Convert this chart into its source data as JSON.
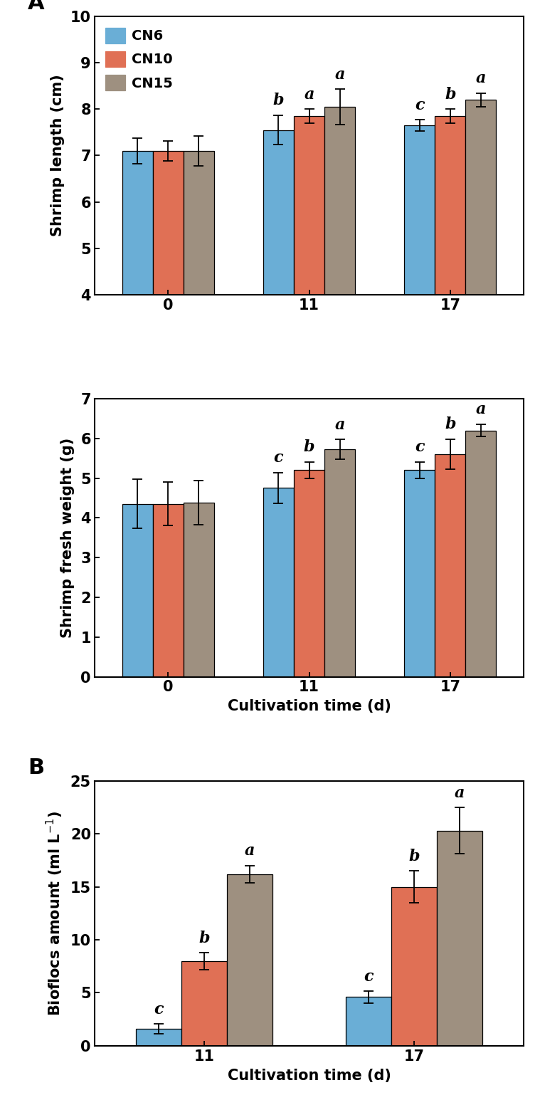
{
  "panel_A_label": "A",
  "panel_B_label": "B",
  "colors": {
    "CN6": "#6aaed6",
    "CN10": "#e07055",
    "CN15": "#9e9080"
  },
  "legend_labels": [
    "CN6",
    "CN10",
    "CN15"
  ],
  "subplot1": {
    "ylabel": "Shrimp length (cm)",
    "ylim": [
      4,
      10
    ],
    "yticks": [
      4,
      5,
      6,
      7,
      8,
      9,
      10
    ],
    "groups": [
      "0",
      "11",
      "17"
    ],
    "values": {
      "CN6": [
        7.1,
        7.55,
        7.65
      ],
      "CN10": [
        7.1,
        7.85,
        7.85
      ],
      "CN15": [
        7.1,
        8.05,
        8.2
      ]
    },
    "errors": {
      "CN6": [
        0.28,
        0.32,
        0.12
      ],
      "CN10": [
        0.22,
        0.15,
        0.15
      ],
      "CN15": [
        0.32,
        0.38,
        0.15
      ]
    },
    "sig_labels": {
      "0": [
        "",
        "",
        ""
      ],
      "11": [
        "b",
        "a",
        "a"
      ],
      "17": [
        "c",
        "b",
        "a"
      ]
    }
  },
  "subplot2": {
    "ylabel": "Shrimp fresh weight (g)",
    "ylim": [
      0,
      7
    ],
    "yticks": [
      0,
      1,
      2,
      3,
      4,
      5,
      6,
      7
    ],
    "groups": [
      "0",
      "11",
      "17"
    ],
    "values": {
      "CN6": [
        4.35,
        4.75,
        5.2
      ],
      "CN10": [
        4.35,
        5.2,
        5.6
      ],
      "CN15": [
        4.38,
        5.72,
        6.2
      ]
    },
    "errors": {
      "CN6": [
        0.62,
        0.38,
        0.2
      ],
      "CN10": [
        0.55,
        0.2,
        0.38
      ],
      "CN15": [
        0.55,
        0.25,
        0.15
      ]
    },
    "sig_labels": {
      "0": [
        "",
        "",
        ""
      ],
      "11": [
        "c",
        "b",
        "a"
      ],
      "17": [
        "c",
        "b",
        "a"
      ]
    }
  },
  "subplot3": {
    "ylabel": "Bioflocs amount (ml L$^{-1}$)",
    "ylim": [
      0,
      25
    ],
    "yticks": [
      0,
      5,
      10,
      15,
      20,
      25
    ],
    "groups": [
      "11",
      "17"
    ],
    "values": {
      "CN6": [
        1.6,
        4.6
      ],
      "CN10": [
        8.0,
        15.0
      ],
      "CN15": [
        16.2,
        20.3
      ]
    },
    "errors": {
      "CN6": [
        0.45,
        0.55
      ],
      "CN10": [
        0.8,
        1.5
      ],
      "CN15": [
        0.8,
        2.2
      ]
    },
    "sig_labels": {
      "11": [
        "c",
        "b",
        "a"
      ],
      "17": [
        "c",
        "b",
        "a"
      ]
    }
  },
  "xlabel": "Cultivation time (d)",
  "bar_width": 0.25,
  "capsize": 5,
  "figsize": [
    7.59,
    15.38
  ],
  "dpi": 100
}
